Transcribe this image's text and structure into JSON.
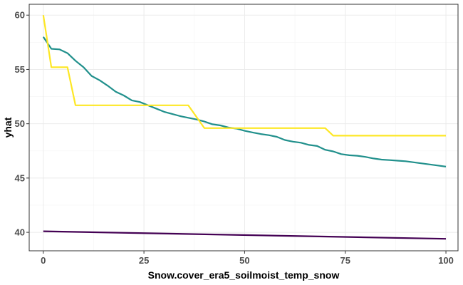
{
  "chart_data": {
    "type": "line",
    "xlabel": "Snow.cover_era5_soilmoist_temp_snow",
    "ylabel": "yhat",
    "xlim": [
      -3.5,
      103
    ],
    "ylim": [
      38.3,
      61.0
    ],
    "x_ticks": [
      0,
      25,
      50,
      75,
      100
    ],
    "y_ticks": [
      40,
      45,
      50,
      55,
      60
    ],
    "grid": true,
    "legend": "none",
    "series": [
      {
        "color": "#440154",
        "x": [
          0,
          100
        ],
        "y": [
          40.1,
          39.4
        ]
      },
      {
        "color": "#21908C",
        "x": [
          0,
          2,
          4,
          6,
          8,
          10,
          12,
          14,
          16,
          18,
          20,
          22,
          24,
          26,
          28,
          30,
          32,
          34,
          36,
          38,
          40,
          42,
          44,
          46,
          48,
          50,
          52,
          54,
          56,
          58,
          60,
          62,
          64,
          66,
          68,
          70,
          72,
          74,
          76,
          78,
          80,
          82,
          84,
          86,
          88,
          90,
          92,
          94,
          96,
          98,
          100
        ],
        "y": [
          58.0,
          56.9,
          56.85,
          56.5,
          55.8,
          55.2,
          54.4,
          54.0,
          53.5,
          52.95,
          52.6,
          52.15,
          52.0,
          51.7,
          51.4,
          51.1,
          50.9,
          50.7,
          50.55,
          50.4,
          50.2,
          49.95,
          49.85,
          49.65,
          49.55,
          49.35,
          49.2,
          49.05,
          48.95,
          48.8,
          48.5,
          48.35,
          48.25,
          48.05,
          47.95,
          47.6,
          47.45,
          47.2,
          47.1,
          47.05,
          46.95,
          46.8,
          46.7,
          46.65,
          46.6,
          46.55,
          46.45,
          46.35,
          46.25,
          46.15,
          46.05
        ]
      },
      {
        "color": "#FDE725",
        "x": [
          0,
          2,
          2,
          6,
          8,
          8,
          36,
          36,
          40,
          40,
          70,
          70,
          72,
          72,
          100
        ],
        "y": [
          60.0,
          55.2,
          55.2,
          55.2,
          51.7,
          51.7,
          51.7,
          51.7,
          49.6,
          49.6,
          49.6,
          49.6,
          48.9,
          48.9,
          48.9
        ]
      }
    ]
  }
}
